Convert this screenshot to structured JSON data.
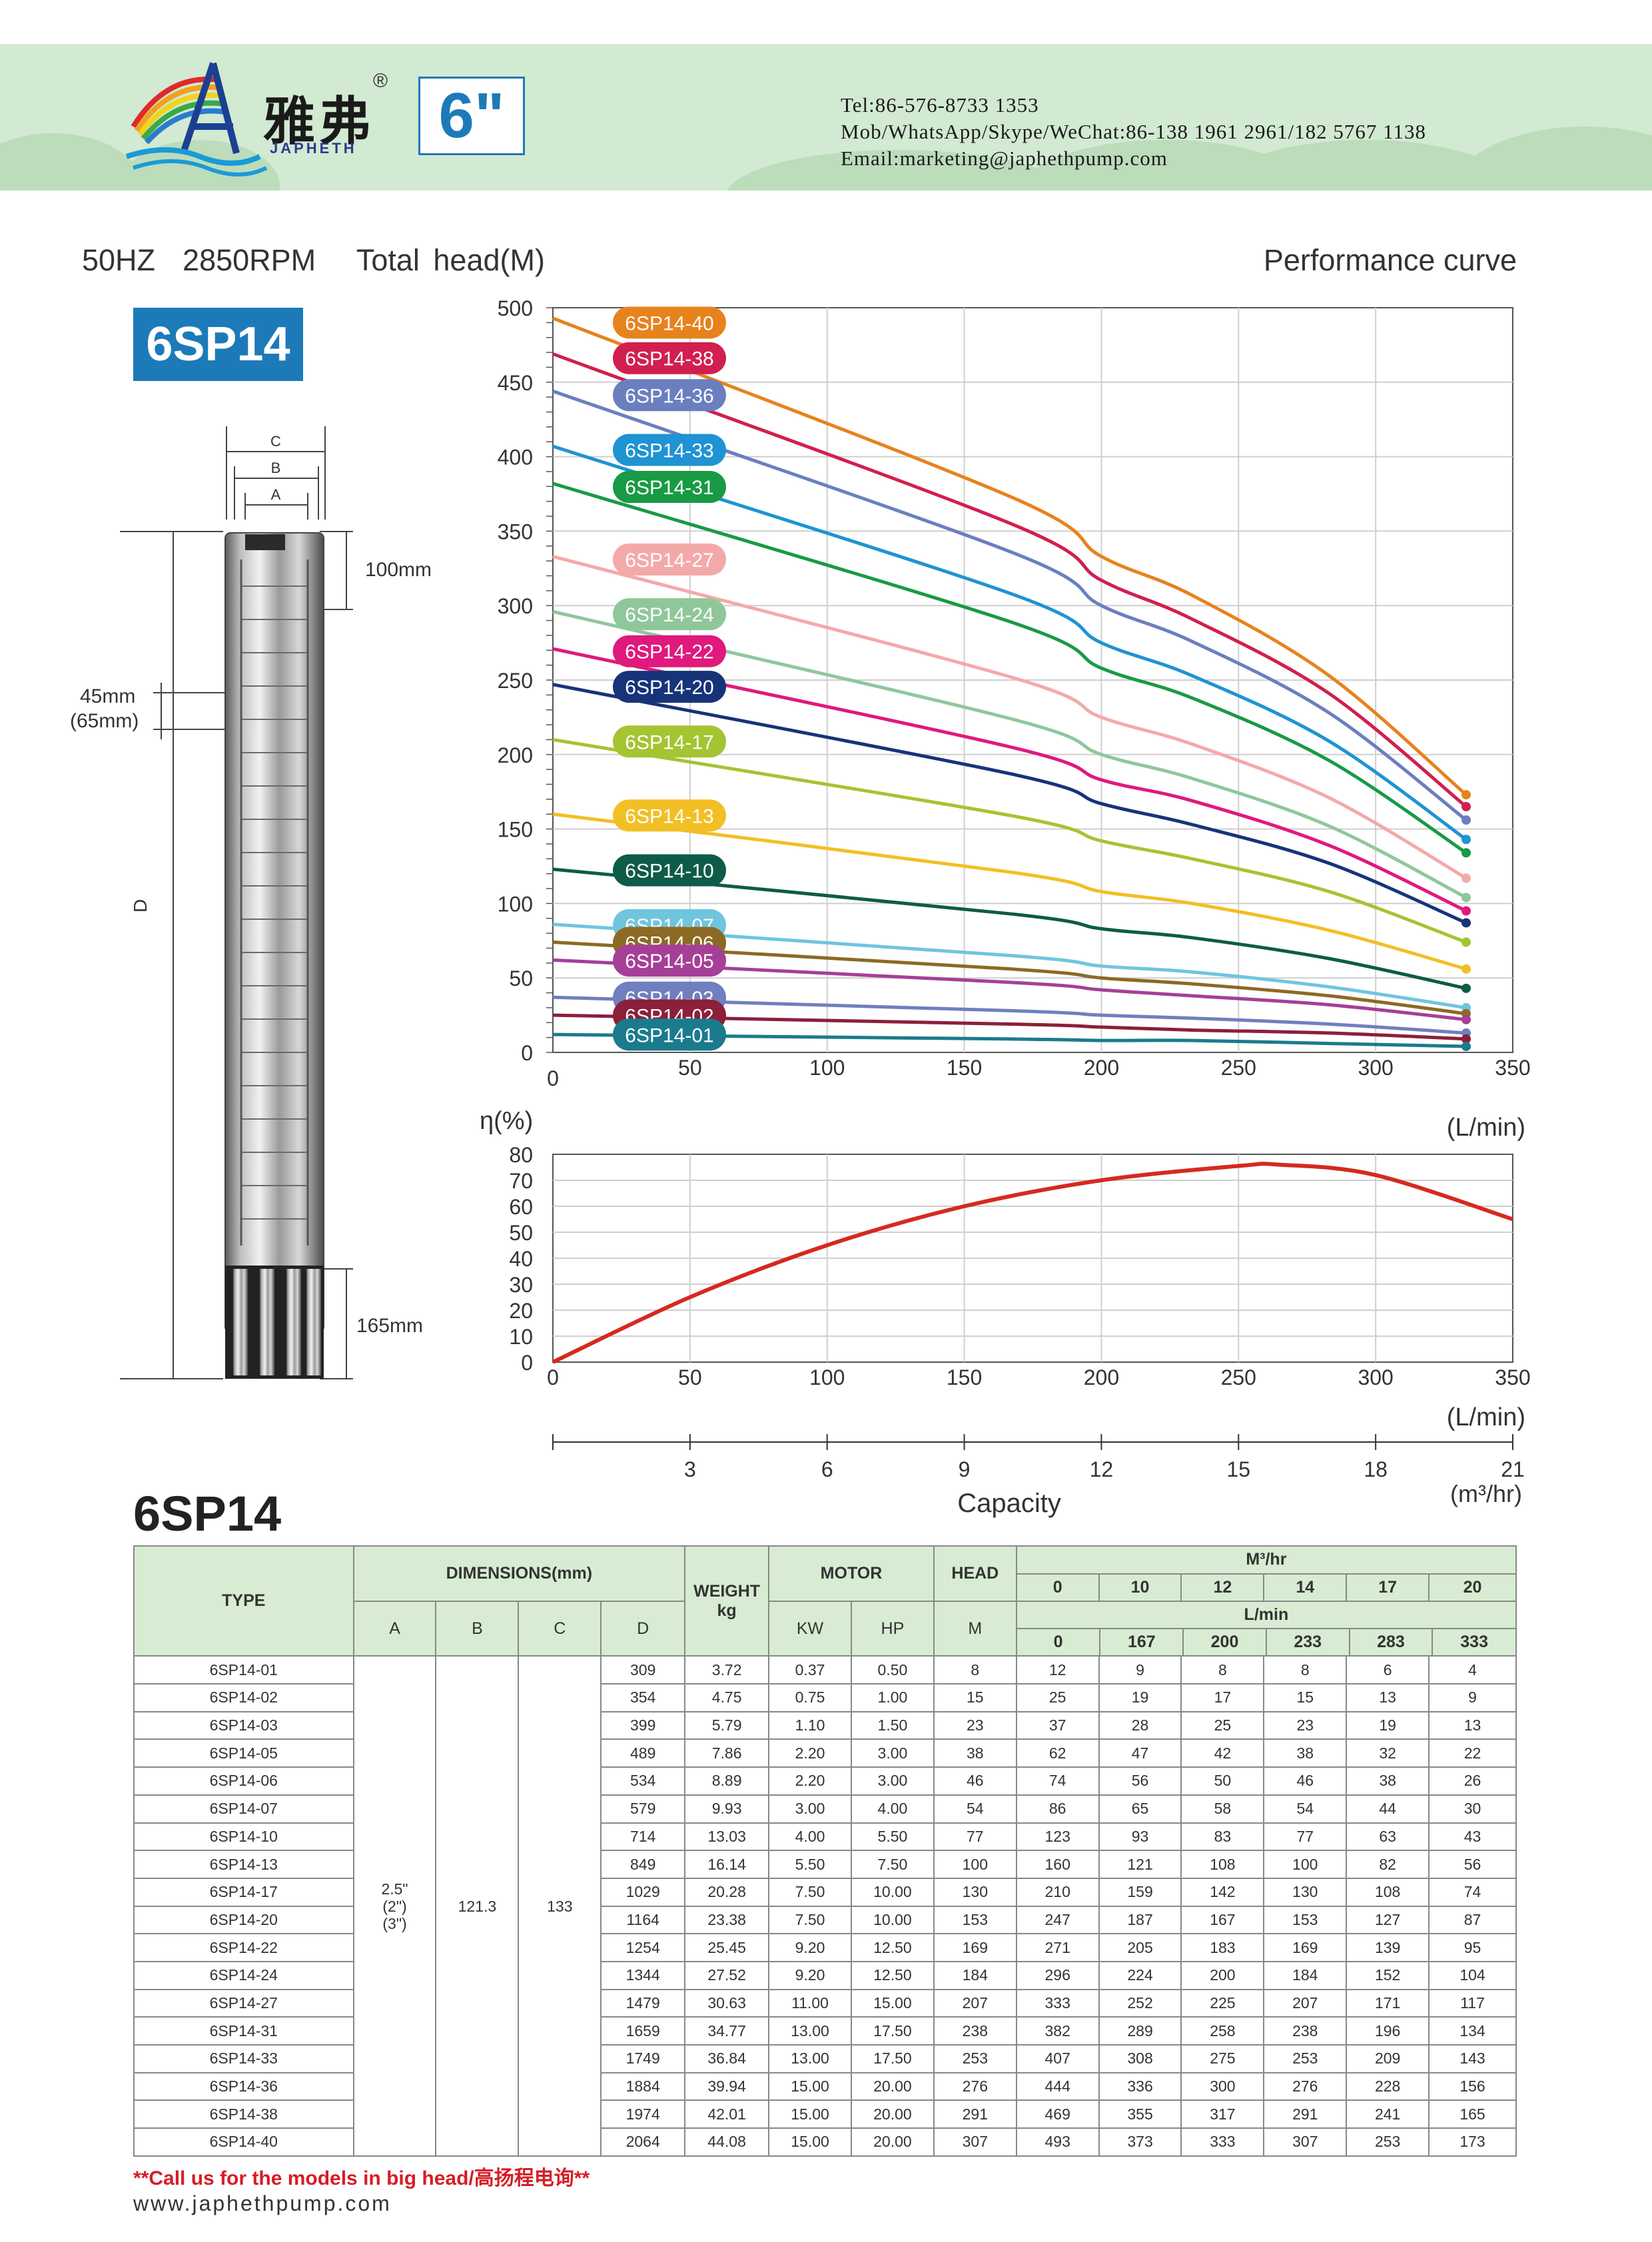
{
  "header": {
    "brand_cn": "雅弗",
    "brand_reg": "®",
    "brand_en": "JAPHETH",
    "size": "6\"",
    "tel": "Tel:86-576-8733 1353",
    "mob": "Mob/WhatsApp/Skype/WeChat:86-138 1961 2961/182 5767 1138",
    "email": "Email:marketing@japhethpump.com"
  },
  "titles": {
    "subtitle": "50HZ  2850RPM   Total head(M)",
    "performance": "Performance curve",
    "model": "6SP14",
    "table_title": "6SP14"
  },
  "pump_drawing": {
    "dim_c": "C",
    "dim_b": "B",
    "dim_a": "A",
    "dim_d": "D",
    "top_len": "100mm",
    "gap_1": "45mm",
    "gap_2": "(65mm)",
    "bottom_len": "165mm"
  },
  "chart_data": [
    {
      "type": "line",
      "title": "",
      "ylabel": "Total head(M)",
      "xlabel": "(L/min)",
      "xlim": [
        0,
        350
      ],
      "ylim": [
        0,
        500
      ],
      "x_ticks": [
        0,
        50,
        100,
        150,
        200,
        250,
        300,
        350
      ],
      "y_ticks": [
        0,
        50,
        100,
        150,
        200,
        250,
        300,
        350,
        400,
        450,
        500
      ],
      "x": [
        0,
        167,
        200,
        233,
        283,
        333
      ],
      "series": [
        {
          "name": "6SP14-40",
          "color": "#e8821c",
          "values": [
            493,
            373,
            333,
            307,
            253,
            173
          ],
          "y0": 493
        },
        {
          "name": "6SP14-38",
          "color": "#d11f4f",
          "values": [
            469,
            355,
            317,
            291,
            241,
            165
          ],
          "y0": 469
        },
        {
          "name": "6SP14-36",
          "color": "#6b7fbf",
          "values": [
            444,
            336,
            300,
            276,
            228,
            156
          ],
          "y0": 444
        },
        {
          "name": "6SP14-33",
          "color": "#1f93d3",
          "values": [
            407,
            308,
            275,
            253,
            209,
            143
          ],
          "y0": 407
        },
        {
          "name": "6SP14-31",
          "color": "#199a45",
          "values": [
            382,
            289,
            258,
            238,
            196,
            134
          ],
          "y0": 382
        },
        {
          "name": "6SP14-27",
          "color": "#f4a9a9",
          "values": [
            333,
            252,
            225,
            207,
            171,
            117
          ],
          "y0": 333
        },
        {
          "name": "6SP14-24",
          "color": "#8fc79b",
          "values": [
            296,
            224,
            200,
            184,
            152,
            104
          ],
          "y0": 296
        },
        {
          "name": "6SP14-22",
          "color": "#e0197d",
          "values": [
            271,
            205,
            183,
            169,
            139,
            95
          ],
          "y0": 271
        },
        {
          "name": "6SP14-20",
          "color": "#17337a",
          "values": [
            247,
            187,
            167,
            153,
            127,
            87
          ],
          "y0": 247
        },
        {
          "name": "6SP14-17",
          "color": "#a4c431",
          "values": [
            210,
            159,
            142,
            130,
            108,
            74
          ],
          "y0": 210
        },
        {
          "name": "6SP14-13",
          "color": "#f2bf25",
          "values": [
            160,
            121,
            108,
            100,
            82,
            56
          ],
          "y0": 160
        },
        {
          "name": "6SP14-10",
          "color": "#0e5b48",
          "values": [
            123,
            93,
            83,
            77,
            63,
            43
          ],
          "y0": 123
        },
        {
          "name": "6SP14-07",
          "color": "#70c5de",
          "values": [
            86,
            65,
            58,
            54,
            44,
            30
          ],
          "y0": 86
        },
        {
          "name": "6SP14-06",
          "color": "#8c6a24",
          "values": [
            74,
            56,
            50,
            46,
            38,
            26
          ],
          "y0": 74
        },
        {
          "name": "6SP14-05",
          "color": "#a63f97",
          "values": [
            62,
            47,
            42,
            38,
            32,
            22
          ],
          "y0": 62
        },
        {
          "name": "6SP14-03",
          "color": "#6f7fbf",
          "values": [
            37,
            28,
            25,
            23,
            19,
            13
          ],
          "y0": 37
        },
        {
          "name": "6SP14-02",
          "color": "#8c1f3a",
          "values": [
            25,
            19,
            17,
            15,
            13,
            9
          ],
          "y0": 25
        },
        {
          "name": "6SP14-01",
          "color": "#1a7b8c",
          "values": [
            12,
            9,
            8,
            8,
            6,
            4
          ],
          "y0": 12
        }
      ]
    },
    {
      "type": "line",
      "title": "",
      "ylabel": "η(%)",
      "xlabel": "(L/min)",
      "xlim": [
        0,
        350
      ],
      "ylim": [
        0,
        80
      ],
      "x_ticks": [
        0,
        50,
        100,
        150,
        200,
        250,
        300,
        350
      ],
      "y_ticks": [
        0,
        10,
        20,
        30,
        40,
        50,
        60,
        70,
        80
      ],
      "series": [
        {
          "name": "",
          "color": "#d52a1f",
          "x": [
            0,
            50,
            100,
            150,
            200,
            250,
            265,
            300,
            350
          ],
          "values": [
            0,
            25,
            45,
            60,
            70,
            75.5,
            76,
            72,
            55
          ]
        }
      ]
    }
  ],
  "capacity_axis": {
    "ticks": [
      "3",
      "6",
      "9",
      "12",
      "15",
      "18",
      "21"
    ],
    "label": "Capacity",
    "unit": "(m³/hr)"
  },
  "table": {
    "headers": {
      "type": "TYPE",
      "dimensions": "DIMENSIONS(mm)",
      "weight": "WEIGHT",
      "weight_unit": "kg",
      "motor": "MOTOR",
      "head": "HEAD",
      "flow_m3": "M³/hr",
      "flow_lmin": "L/min",
      "a": "A",
      "b": "B",
      "c": "C",
      "d": "D",
      "kw": "KW",
      "hp": "HP",
      "m": "M",
      "m3_values": [
        "0",
        "10",
        "12",
        "14",
        "17",
        "20"
      ],
      "lmin_values": [
        "0",
        "167",
        "200",
        "233",
        "283",
        "333"
      ]
    },
    "merged": {
      "a_line1": "2.5\"",
      "a_line2": "(2\")",
      "a_line3": "(3\")",
      "b": "121.3",
      "c": "133"
    },
    "rows": [
      [
        "6SP14-01",
        "309",
        "3.72",
        "0.37",
        "0.50",
        "8",
        "12",
        "9",
        "8",
        "8",
        "6",
        "4"
      ],
      [
        "6SP14-02",
        "354",
        "4.75",
        "0.75",
        "1.00",
        "15",
        "25",
        "19",
        "17",
        "15",
        "13",
        "9"
      ],
      [
        "6SP14-03",
        "399",
        "5.79",
        "1.10",
        "1.50",
        "23",
        "37",
        "28",
        "25",
        "23",
        "19",
        "13"
      ],
      [
        "6SP14-05",
        "489",
        "7.86",
        "2.20",
        "3.00",
        "38",
        "62",
        "47",
        "42",
        "38",
        "32",
        "22"
      ],
      [
        "6SP14-06",
        "534",
        "8.89",
        "2.20",
        "3.00",
        "46",
        "74",
        "56",
        "50",
        "46",
        "38",
        "26"
      ],
      [
        "6SP14-07",
        "579",
        "9.93",
        "3.00",
        "4.00",
        "54",
        "86",
        "65",
        "58",
        "54",
        "44",
        "30"
      ],
      [
        "6SP14-10",
        "714",
        "13.03",
        "4.00",
        "5.50",
        "77",
        "123",
        "93",
        "83",
        "77",
        "63",
        "43"
      ],
      [
        "6SP14-13",
        "849",
        "16.14",
        "5.50",
        "7.50",
        "100",
        "160",
        "121",
        "108",
        "100",
        "82",
        "56"
      ],
      [
        "6SP14-17",
        "1029",
        "20.28",
        "7.50",
        "10.00",
        "130",
        "210",
        "159",
        "142",
        "130",
        "108",
        "74"
      ],
      [
        "6SP14-20",
        "1164",
        "23.38",
        "7.50",
        "10.00",
        "153",
        "247",
        "187",
        "167",
        "153",
        "127",
        "87"
      ],
      [
        "6SP14-22",
        "1254",
        "25.45",
        "9.20",
        "12.50",
        "169",
        "271",
        "205",
        "183",
        "169",
        "139",
        "95"
      ],
      [
        "6SP14-24",
        "1344",
        "27.52",
        "9.20",
        "12.50",
        "184",
        "296",
        "224",
        "200",
        "184",
        "152",
        "104"
      ],
      [
        "6SP14-27",
        "1479",
        "30.63",
        "11.00",
        "15.00",
        "207",
        "333",
        "252",
        "225",
        "207",
        "171",
        "117"
      ],
      [
        "6SP14-31",
        "1659",
        "34.77",
        "13.00",
        "17.50",
        "238",
        "382",
        "289",
        "258",
        "238",
        "196",
        "134"
      ],
      [
        "6SP14-33",
        "1749",
        "36.84",
        "13.00",
        "17.50",
        "253",
        "407",
        "308",
        "275",
        "253",
        "209",
        "143"
      ],
      [
        "6SP14-36",
        "1884",
        "39.94",
        "15.00",
        "20.00",
        "276",
        "444",
        "336",
        "300",
        "276",
        "228",
        "156"
      ],
      [
        "6SP14-38",
        "1974",
        "42.01",
        "15.00",
        "20.00",
        "291",
        "469",
        "355",
        "317",
        "291",
        "241",
        "165"
      ],
      [
        "6SP14-40",
        "2064",
        "44.08",
        "15.00",
        "20.00",
        "307",
        "493",
        "373",
        "333",
        "307",
        "253",
        "173"
      ]
    ]
  },
  "footer": {
    "note": "**Call us for the models in big head/高扬程电询**",
    "website": "www.japhethpump.com"
  }
}
